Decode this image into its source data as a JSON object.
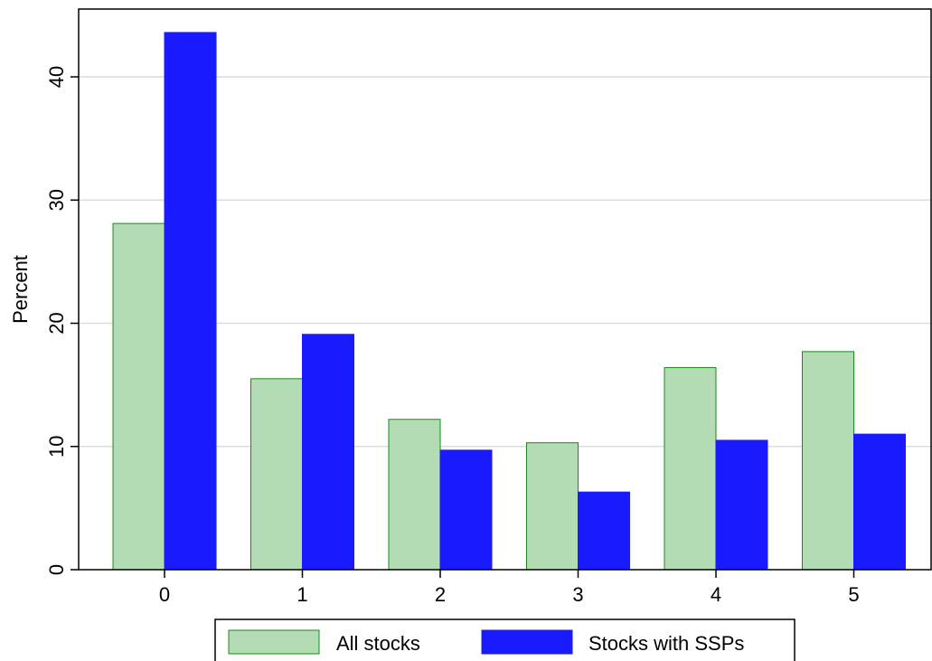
{
  "chart_data": {
    "type": "bar",
    "title": "",
    "xlabel": "",
    "ylabel": "Percent",
    "categories": [
      "0",
      "1",
      "2",
      "3",
      "4",
      "5"
    ],
    "ylim": [
      0,
      43.5
    ],
    "yticks": [
      0,
      10,
      20,
      30,
      40
    ],
    "grid": true,
    "legend_position": "bottom",
    "series": [
      {
        "name": "All stocks",
        "values": [
          28.1,
          15.5,
          12.2,
          10.3,
          16.4,
          17.7
        ],
        "color": "#b3dbb4",
        "stroke": "#1a8a1a"
      },
      {
        "name": "Stocks with SSPs",
        "values": [
          43.6,
          19.1,
          9.7,
          6.3,
          10.5,
          11.0
        ],
        "color": "#1a1aff",
        "stroke": "#1a1aff"
      }
    ]
  }
}
